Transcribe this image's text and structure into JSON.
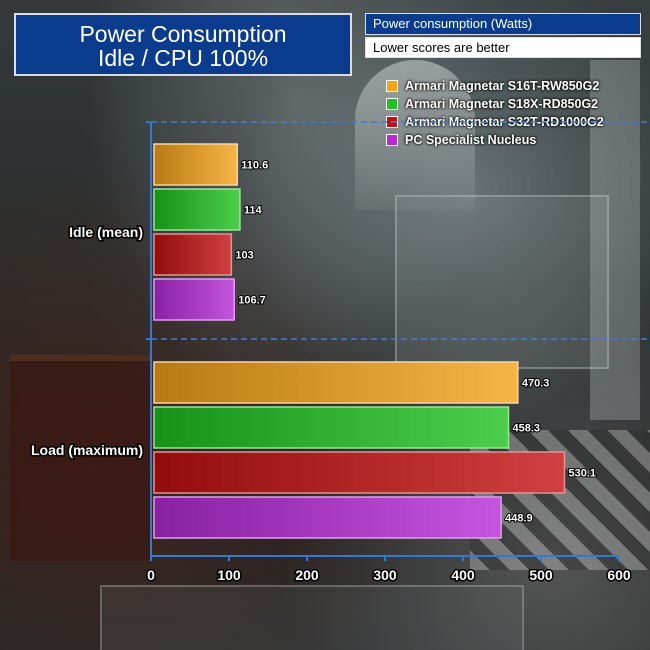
{
  "title_lines": [
    "Power Consumption",
    "Idle / CPU 100%"
  ],
  "unit_label": "Power consumption (Watts)",
  "note_label": "Lower scores are better",
  "chart_data": {
    "type": "bar",
    "orientation": "horizontal",
    "categories": [
      "Idle (mean)",
      "Load (maximum)"
    ],
    "series": [
      {
        "name": "Armari Magnetar S16T-RW850G2",
        "values": [
          110.6,
          470.3
        ],
        "color": "#f5a21a"
      },
      {
        "name": "Armari Magnetar S18X-RD850G2",
        "values": [
          114,
          458.3
        ],
        "color": "#1fc21f"
      },
      {
        "name": "Armari Magnetar S32T-RD1000G2",
        "values": [
          103,
          530.1
        ],
        "color": "#c41010"
      },
      {
        "name": "PC Specialist Nucleus",
        "values": [
          106.7,
          448.9
        ],
        "color": "#b62ad6"
      }
    ],
    "value_labels": [
      [
        "110.6",
        "114",
        "103",
        "106.7"
      ],
      [
        "470.3",
        "458.3",
        "530.1",
        "448.9"
      ]
    ],
    "xlim": [
      0,
      600
    ],
    "xticks": [
      "0",
      "100",
      "200",
      "300",
      "400",
      "500",
      "600"
    ],
    "legend_position": "top-right",
    "grid": false
  }
}
